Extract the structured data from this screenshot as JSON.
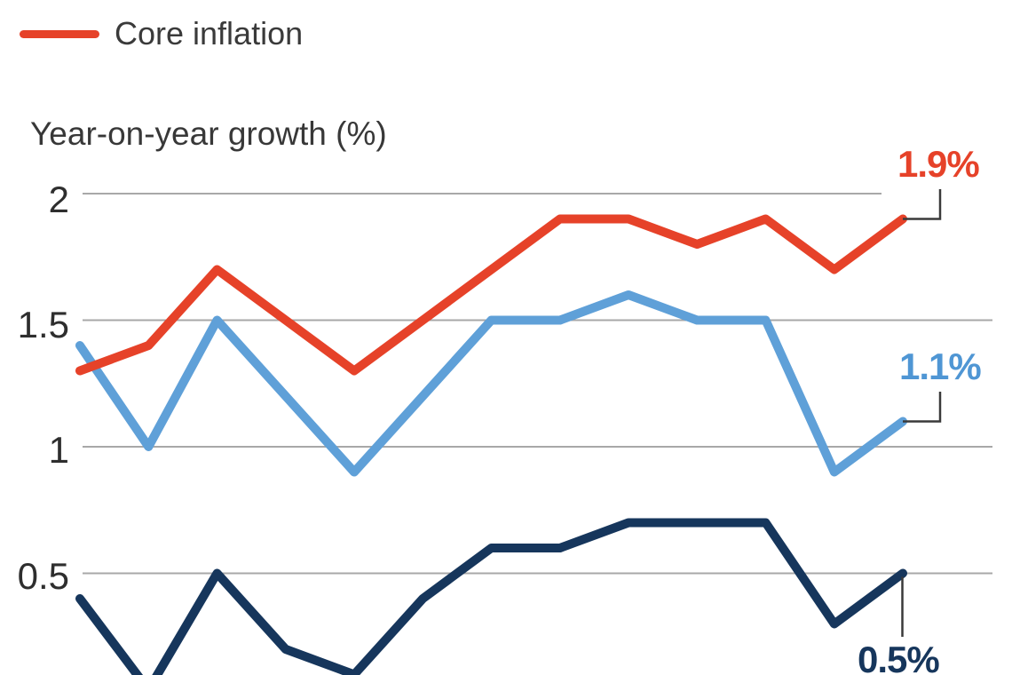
{
  "legend": {
    "items": [
      {
        "label": "Core inflation",
        "swatch_color": "#e64229"
      }
    ]
  },
  "chart_data": {
    "type": "line",
    "title": "Year-on-year growth (%)",
    "xlabel": "",
    "ylabel": "Year-on-year growth (%)",
    "x_axis": {
      "tick_labels_visible": false,
      "num_points": 13
    },
    "ylim_visible": [
      0.1,
      2.1
    ],
    "grid": true,
    "grid_color": "#a8a8a8",
    "yticks": [
      {
        "label": "2",
        "value": 2.0
      },
      {
        "label": "1.5",
        "value": 1.5
      },
      {
        "label": "1",
        "value": 1.0
      },
      {
        "label": "0.5",
        "value": 0.5
      }
    ],
    "series": [
      {
        "id": "core_inflation",
        "name": "Core inflation",
        "color": "#e64229",
        "label_color": "#e64229",
        "end_label": "1.9%",
        "end_value": 1.9,
        "values": [
          1.3,
          1.4,
          1.7,
          1.5,
          1.3,
          1.5,
          1.7,
          1.9,
          1.9,
          1.8,
          1.9,
          1.7,
          1.9
        ]
      },
      {
        "id": "series_blue",
        "name": "",
        "color": "#5fa0d8",
        "label_color": "#4f96d4",
        "end_label": "1.1%",
        "end_value": 1.1,
        "values": [
          1.4,
          1.0,
          1.5,
          1.2,
          0.9,
          1.2,
          1.5,
          1.5,
          1.6,
          1.5,
          1.5,
          0.9,
          1.1
        ]
      },
      {
        "id": "series_navy",
        "name": "",
        "color": "#16365c",
        "label_color": "#16365c",
        "end_label": "0.5%",
        "end_value": 0.5,
        "values": [
          0.4,
          0.04,
          0.5,
          0.2,
          0.1,
          0.4,
          0.6,
          0.6,
          0.7,
          0.7,
          0.7,
          0.3,
          0.5
        ]
      }
    ],
    "annotation_connector_color": "#3a3a3a",
    "legend_position": "top-left"
  }
}
